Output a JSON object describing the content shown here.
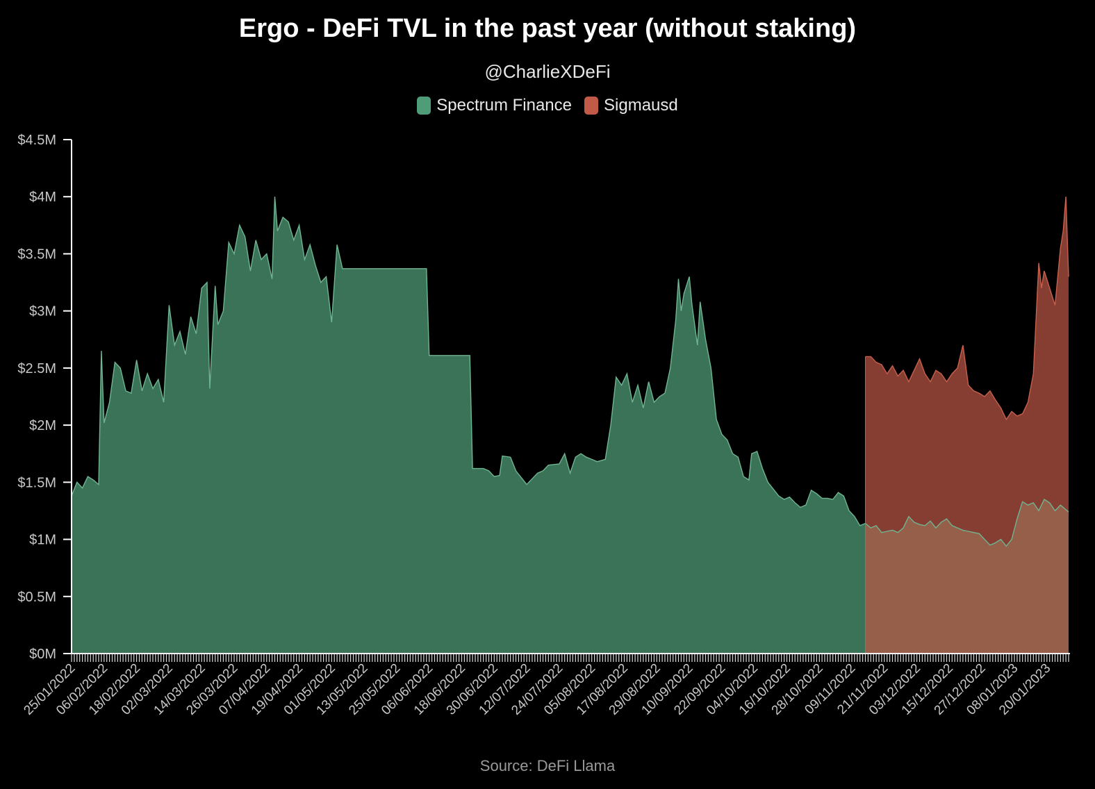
{
  "chart_data": {
    "type": "area",
    "title": "Ergo - DeFi TVL in the past year (without staking)",
    "subtitle": "@CharlieXDeFi",
    "source": "Source: DeFi Llama",
    "stacked": true,
    "legend_position": "top-center",
    "ylim": [
      0,
      4.5
    ],
    "y_ticks": [
      0,
      0.5,
      1,
      1.5,
      2,
      2.5,
      3,
      3.5,
      4,
      4.5
    ],
    "y_tick_labels": [
      "$0M",
      "$0.5M",
      "$1M",
      "$1.5M",
      "$2M",
      "$2.5M",
      "$3M",
      "$3.5M",
      "$4M",
      "$4.5M"
    ],
    "x_tick_labels": [
      "25/01/2022",
      "06/02/2022",
      "18/02/2022",
      "02/03/2022",
      "14/03/2022",
      "26/03/2022",
      "07/04/2022",
      "19/04/2022",
      "01/05/2022",
      "13/05/2022",
      "25/05/2022",
      "06/06/2022",
      "18/06/2022",
      "30/06/2022",
      "12/07/2022",
      "24/07/2022",
      "05/08/2022",
      "17/08/2022",
      "29/08/2022",
      "10/09/2022",
      "22/09/2022",
      "04/10/2022",
      "16/10/2022",
      "28/10/2022",
      "09/11/2022",
      "21/11/2022",
      "03/12/2022",
      "15/12/2022",
      "27/12/2022",
      "08/01/2023",
      "20/01/2023"
    ],
    "x_range": [
      "2022-01-25",
      "2023-01-28"
    ],
    "series": [
      {
        "name": "Spectrum Finance",
        "color": "#3a7358",
        "line_color": "#6fb592",
        "points": [
          [
            "2022-01-25",
            1.38
          ],
          [
            "2022-01-27",
            1.5
          ],
          [
            "2022-01-29",
            1.45
          ],
          [
            "2022-01-31",
            1.55
          ],
          [
            "2022-02-02",
            1.52
          ],
          [
            "2022-02-04",
            1.48
          ],
          [
            "2022-02-05",
            2.65
          ],
          [
            "2022-02-06",
            2.02
          ],
          [
            "2022-02-08",
            2.2
          ],
          [
            "2022-02-10",
            2.55
          ],
          [
            "2022-02-12",
            2.5
          ],
          [
            "2022-02-14",
            2.3
          ],
          [
            "2022-02-16",
            2.28
          ],
          [
            "2022-02-18",
            2.57
          ],
          [
            "2022-02-20",
            2.3
          ],
          [
            "2022-02-22",
            2.45
          ],
          [
            "2022-02-24",
            2.32
          ],
          [
            "2022-02-26",
            2.4
          ],
          [
            "2022-02-28",
            2.2
          ],
          [
            "2022-03-02",
            3.05
          ],
          [
            "2022-03-04",
            2.7
          ],
          [
            "2022-03-06",
            2.82
          ],
          [
            "2022-03-08",
            2.62
          ],
          [
            "2022-03-10",
            2.95
          ],
          [
            "2022-03-12",
            2.8
          ],
          [
            "2022-03-14",
            3.2
          ],
          [
            "2022-03-16",
            3.25
          ],
          [
            "2022-03-17",
            2.32
          ],
          [
            "2022-03-19",
            3.22
          ],
          [
            "2022-03-20",
            2.88
          ],
          [
            "2022-03-22",
            3.0
          ],
          [
            "2022-03-24",
            3.6
          ],
          [
            "2022-03-26",
            3.5
          ],
          [
            "2022-03-28",
            3.75
          ],
          [
            "2022-03-30",
            3.65
          ],
          [
            "2022-04-01",
            3.35
          ],
          [
            "2022-04-03",
            3.62
          ],
          [
            "2022-04-05",
            3.45
          ],
          [
            "2022-04-07",
            3.5
          ],
          [
            "2022-04-09",
            3.28
          ],
          [
            "2022-04-10",
            4.0
          ],
          [
            "2022-04-11",
            3.7
          ],
          [
            "2022-04-13",
            3.82
          ],
          [
            "2022-04-15",
            3.78
          ],
          [
            "2022-04-17",
            3.62
          ],
          [
            "2022-04-19",
            3.75
          ],
          [
            "2022-04-21",
            3.45
          ],
          [
            "2022-04-23",
            3.58
          ],
          [
            "2022-04-25",
            3.4
          ],
          [
            "2022-04-27",
            3.25
          ],
          [
            "2022-04-29",
            3.3
          ],
          [
            "2022-05-01",
            2.9
          ],
          [
            "2022-05-03",
            3.58
          ],
          [
            "2022-05-05",
            3.37
          ],
          [
            "2022-05-15",
            3.37
          ],
          [
            "2022-05-25",
            3.37
          ],
          [
            "2022-06-05",
            3.37
          ],
          [
            "2022-06-06",
            2.61
          ],
          [
            "2022-06-15",
            2.61
          ],
          [
            "2022-06-21",
            2.61
          ],
          [
            "2022-06-22",
            1.62
          ],
          [
            "2022-06-26",
            1.62
          ],
          [
            "2022-06-28",
            1.6
          ],
          [
            "2022-06-30",
            1.55
          ],
          [
            "2022-07-02",
            1.56
          ],
          [
            "2022-07-03",
            1.73
          ],
          [
            "2022-07-06",
            1.72
          ],
          [
            "2022-07-08",
            1.6
          ],
          [
            "2022-07-12",
            1.48
          ],
          [
            "2022-07-16",
            1.58
          ],
          [
            "2022-07-18",
            1.6
          ],
          [
            "2022-07-20",
            1.65
          ],
          [
            "2022-07-24",
            1.66
          ],
          [
            "2022-07-26",
            1.75
          ],
          [
            "2022-07-28",
            1.58
          ],
          [
            "2022-07-30",
            1.72
          ],
          [
            "2022-08-01",
            1.75
          ],
          [
            "2022-08-03",
            1.72
          ],
          [
            "2022-08-05",
            1.7
          ],
          [
            "2022-08-07",
            1.68
          ],
          [
            "2022-08-10",
            1.7
          ],
          [
            "2022-08-12",
            2.0
          ],
          [
            "2022-08-14",
            2.42
          ],
          [
            "2022-08-16",
            2.35
          ],
          [
            "2022-08-18",
            2.45
          ],
          [
            "2022-08-20",
            2.2
          ],
          [
            "2022-08-22",
            2.35
          ],
          [
            "2022-08-24",
            2.15
          ],
          [
            "2022-08-26",
            2.38
          ],
          [
            "2022-08-28",
            2.2
          ],
          [
            "2022-08-30",
            2.25
          ],
          [
            "2022-09-01",
            2.28
          ],
          [
            "2022-09-03",
            2.5
          ],
          [
            "2022-09-05",
            2.92
          ],
          [
            "2022-09-06",
            3.28
          ],
          [
            "2022-09-07",
            3.0
          ],
          [
            "2022-09-08",
            3.15
          ],
          [
            "2022-09-10",
            3.3
          ],
          [
            "2022-09-11",
            3.05
          ],
          [
            "2022-09-13",
            2.7
          ],
          [
            "2022-09-14",
            3.08
          ],
          [
            "2022-09-16",
            2.75
          ],
          [
            "2022-09-18",
            2.5
          ],
          [
            "2022-09-20",
            2.05
          ],
          [
            "2022-09-22",
            1.92
          ],
          [
            "2022-09-24",
            1.87
          ],
          [
            "2022-09-26",
            1.75
          ],
          [
            "2022-09-28",
            1.72
          ],
          [
            "2022-09-30",
            1.55
          ],
          [
            "2022-10-02",
            1.52
          ],
          [
            "2022-10-03",
            1.75
          ],
          [
            "2022-10-05",
            1.77
          ],
          [
            "2022-10-07",
            1.62
          ],
          [
            "2022-10-09",
            1.5
          ],
          [
            "2022-10-11",
            1.44
          ],
          [
            "2022-10-13",
            1.38
          ],
          [
            "2022-10-15",
            1.35
          ],
          [
            "2022-10-17",
            1.37
          ],
          [
            "2022-10-19",
            1.32
          ],
          [
            "2022-10-21",
            1.28
          ],
          [
            "2022-10-23",
            1.3
          ],
          [
            "2022-10-25",
            1.43
          ],
          [
            "2022-10-27",
            1.4
          ],
          [
            "2022-10-29",
            1.36
          ],
          [
            "2022-10-31",
            1.36
          ],
          [
            "2022-11-02",
            1.35
          ],
          [
            "2022-11-04",
            1.41
          ],
          [
            "2022-11-06",
            1.38
          ],
          [
            "2022-11-08",
            1.25
          ],
          [
            "2022-11-10",
            1.2
          ],
          [
            "2022-11-12",
            1.12
          ],
          [
            "2022-11-14",
            1.14
          ],
          [
            "2022-11-16",
            1.1
          ],
          [
            "2022-11-18",
            1.12
          ],
          [
            "2022-11-20",
            1.06
          ],
          [
            "2022-11-22",
            1.07
          ],
          [
            "2022-11-24",
            1.08
          ],
          [
            "2022-11-26",
            1.06
          ],
          [
            "2022-11-28",
            1.1
          ],
          [
            "2022-11-30",
            1.2
          ],
          [
            "2022-12-02",
            1.15
          ],
          [
            "2022-12-04",
            1.13
          ],
          [
            "2022-12-06",
            1.12
          ],
          [
            "2022-12-08",
            1.16
          ],
          [
            "2022-12-10",
            1.1
          ],
          [
            "2022-12-12",
            1.15
          ],
          [
            "2022-12-14",
            1.18
          ],
          [
            "2022-12-16",
            1.12
          ],
          [
            "2022-12-18",
            1.1
          ],
          [
            "2022-12-20",
            1.08
          ],
          [
            "2022-12-22",
            1.07
          ],
          [
            "2022-12-24",
            1.06
          ],
          [
            "2022-12-26",
            1.05
          ],
          [
            "2022-12-28",
            1.0
          ],
          [
            "2022-12-30",
            0.95
          ],
          [
            "2023-01-01",
            0.97
          ],
          [
            "2023-01-03",
            1.0
          ],
          [
            "2023-01-05",
            0.94
          ],
          [
            "2023-01-07",
            1.0
          ],
          [
            "2023-01-09",
            1.18
          ],
          [
            "2023-01-11",
            1.33
          ],
          [
            "2023-01-13",
            1.3
          ],
          [
            "2023-01-15",
            1.32
          ],
          [
            "2023-01-17",
            1.25
          ],
          [
            "2023-01-19",
            1.35
          ],
          [
            "2023-01-21",
            1.32
          ],
          [
            "2023-01-23",
            1.25
          ],
          [
            "2023-01-25",
            1.3
          ],
          [
            "2023-01-28",
            1.24
          ]
        ]
      },
      {
        "name": "Sigmausd",
        "color": "#863e32",
        "line_color": "#c8604c",
        "overlap_color": "#955f4a",
        "start": "2022-11-14",
        "total_points": [
          [
            "2022-11-14",
            2.6
          ],
          [
            "2022-11-16",
            2.6
          ],
          [
            "2022-11-18",
            2.55
          ],
          [
            "2022-11-20",
            2.53
          ],
          [
            "2022-11-22",
            2.45
          ],
          [
            "2022-11-24",
            2.52
          ],
          [
            "2022-11-26",
            2.43
          ],
          [
            "2022-11-28",
            2.48
          ],
          [
            "2022-11-30",
            2.38
          ],
          [
            "2022-12-02",
            2.48
          ],
          [
            "2022-12-04",
            2.58
          ],
          [
            "2022-12-06",
            2.45
          ],
          [
            "2022-12-08",
            2.38
          ],
          [
            "2022-12-10",
            2.48
          ],
          [
            "2022-12-12",
            2.45
          ],
          [
            "2022-12-14",
            2.38
          ],
          [
            "2022-12-16",
            2.45
          ],
          [
            "2022-12-18",
            2.5
          ],
          [
            "2022-12-20",
            2.7
          ],
          [
            "2022-12-22",
            2.35
          ],
          [
            "2022-12-24",
            2.3
          ],
          [
            "2022-12-26",
            2.28
          ],
          [
            "2022-12-28",
            2.25
          ],
          [
            "2022-12-30",
            2.3
          ],
          [
            "2023-01-01",
            2.22
          ],
          [
            "2023-01-03",
            2.15
          ],
          [
            "2023-01-05",
            2.05
          ],
          [
            "2023-01-07",
            2.12
          ],
          [
            "2023-01-09",
            2.08
          ],
          [
            "2023-01-11",
            2.1
          ],
          [
            "2023-01-13",
            2.2
          ],
          [
            "2023-01-15",
            2.45
          ],
          [
            "2023-01-17",
            3.42
          ],
          [
            "2023-01-18",
            3.2
          ],
          [
            "2023-01-19",
            3.35
          ],
          [
            "2023-01-21",
            3.2
          ],
          [
            "2023-01-23",
            3.05
          ],
          [
            "2023-01-25",
            3.55
          ],
          [
            "2023-01-26",
            3.7
          ],
          [
            "2023-01-27",
            4.0
          ],
          [
            "2023-01-28",
            3.3
          ]
        ]
      }
    ]
  }
}
